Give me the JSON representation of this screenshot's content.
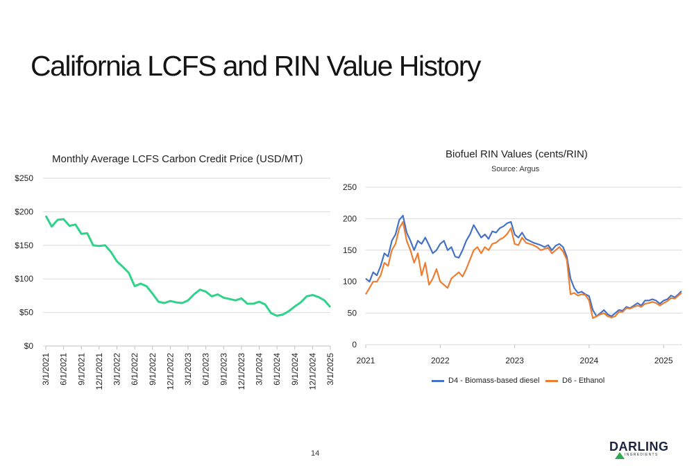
{
  "slide": {
    "title": "California LCFS and RIN Value History",
    "page_number": "14",
    "logo": {
      "name": "DARLING",
      "subtitle": "INGREDIENTS"
    }
  },
  "colors": {
    "lcfs_line": "#2ed389",
    "d4": "#4472c4",
    "d6": "#ed7d31",
    "grid": "#d9d9d9",
    "logo_green": "#2fa84f"
  },
  "chart_data": [
    {
      "type": "line",
      "title": "Monthly Average LCFS Carbon Credit Price (USD/MT)",
      "ylim": [
        0,
        250
      ],
      "y_ticks": [
        "$0",
        "$50",
        "$100",
        "$150",
        "$200",
        "$250"
      ],
      "x_tick_labels": [
        "3/1/2021",
        "6/1/2021",
        "9/1/2021",
        "12/1/2021",
        "3/1/2022",
        "6/1/2022",
        "9/1/2022",
        "12/1/2022",
        "3/1/2023",
        "6/1/2023",
        "9/1/2023",
        "12/1/2023",
        "3/1/2024",
        "6/1/2024",
        "9/1/2024",
        "12/1/2024",
        "3/1/2025"
      ],
      "grid": true,
      "series": [
        {
          "values": [
            194,
            178,
            188,
            189,
            179,
            181,
            167,
            168,
            150,
            149,
            150,
            140,
            126,
            118,
            109,
            89,
            93,
            89,
            78,
            66,
            64,
            67,
            65,
            64,
            68,
            77,
            84,
            81,
            74,
            77,
            72,
            70,
            68,
            71,
            63,
            63,
            66,
            62,
            49,
            45,
            47,
            52,
            59,
            65,
            74,
            76,
            73,
            68,
            58
          ]
        }
      ]
    },
    {
      "type": "line",
      "title": "Biofuel RIN Values (cents/RIN)",
      "subtitle": "Source: Argus",
      "ylim": [
        0,
        250
      ],
      "y_ticks": [
        "0",
        "50",
        "100",
        "150",
        "200",
        "250"
      ],
      "x_tick_labels": [
        "2021",
        "2022",
        "2023",
        "2024",
        "2025"
      ],
      "legend_position": "bottom",
      "grid": true,
      "x": [
        2021.0,
        2021.05,
        2021.1,
        2021.15,
        2021.2,
        2021.25,
        2021.3,
        2021.35,
        2021.4,
        2021.45,
        2021.5,
        2021.55,
        2021.6,
        2021.65,
        2021.7,
        2021.75,
        2021.8,
        2021.85,
        2021.9,
        2021.95,
        2022.0,
        2022.05,
        2022.1,
        2022.15,
        2022.2,
        2022.25,
        2022.3,
        2022.35,
        2022.4,
        2022.45,
        2022.5,
        2022.55,
        2022.6,
        2022.65,
        2022.7,
        2022.75,
        2022.8,
        2022.85,
        2022.9,
        2022.95,
        2023.0,
        2023.05,
        2023.1,
        2023.15,
        2023.2,
        2023.25,
        2023.3,
        2023.35,
        2023.4,
        2023.45,
        2023.5,
        2023.55,
        2023.6,
        2023.65,
        2023.7,
        2023.75,
        2023.8,
        2023.85,
        2023.9,
        2023.95,
        2024.0,
        2024.05,
        2024.1,
        2024.15,
        2024.2,
        2024.25,
        2024.3,
        2024.35,
        2024.4,
        2024.45,
        2024.5,
        2024.55,
        2024.6,
        2024.65,
        2024.7,
        2024.75,
        2024.8,
        2024.85,
        2024.9,
        2024.95,
        2025.0,
        2025.05,
        2025.1,
        2025.15,
        2025.2,
        2025.24
      ],
      "series": [
        {
          "name": "D4 - Biomass-based diesel",
          "values": [
            105,
            100,
            115,
            110,
            125,
            145,
            140,
            165,
            175,
            198,
            205,
            178,
            165,
            150,
            165,
            160,
            170,
            158,
            145,
            150,
            160,
            165,
            150,
            155,
            140,
            138,
            150,
            165,
            175,
            190,
            180,
            170,
            175,
            168,
            180,
            178,
            185,
            188,
            193,
            195,
            175,
            170,
            178,
            168,
            165,
            162,
            160,
            158,
            155,
            158,
            150,
            157,
            160,
            155,
            140,
            105,
            90,
            82,
            84,
            80,
            77,
            55,
            45,
            50,
            55,
            48,
            45,
            50,
            55,
            54,
            60,
            58,
            62,
            66,
            62,
            70,
            70,
            72,
            70,
            65,
            70,
            72,
            78,
            75,
            80,
            85
          ]
        },
        {
          "name": "D6 - Ethanol",
          "values": [
            80,
            90,
            100,
            100,
            110,
            130,
            125,
            150,
            160,
            185,
            195,
            165,
            150,
            130,
            145,
            110,
            130,
            95,
            105,
            120,
            100,
            95,
            90,
            105,
            110,
            115,
            108,
            120,
            135,
            150,
            155,
            145,
            155,
            150,
            160,
            162,
            167,
            170,
            176,
            185,
            160,
            158,
            170,
            162,
            160,
            158,
            155,
            150,
            152,
            154,
            145,
            150,
            155,
            148,
            135,
            80,
            82,
            78,
            80,
            79,
            70,
            42,
            45,
            48,
            50,
            45,
            43,
            45,
            52,
            52,
            58,
            57,
            60,
            62,
            60,
            65,
            66,
            68,
            66,
            62,
            66,
            69,
            74,
            73,
            78,
            82
          ]
        }
      ]
    }
  ]
}
